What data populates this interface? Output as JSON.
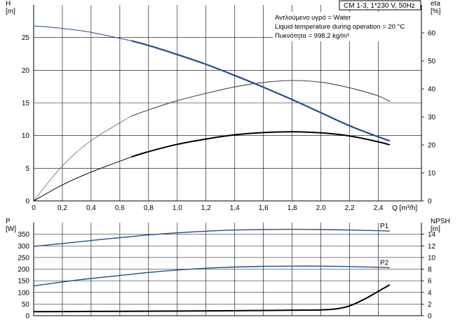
{
  "title": "CM 1-3, 1*230 V, 50Hz",
  "info": {
    "fluid": "Αντλούμενο υγρό = Water",
    "temperature": "Liquid temperature during operation = 20 °C",
    "density": "Πυκνότητα = 998.2 kg/m³"
  },
  "colors": {
    "blue": "#1f4e8c",
    "black": "#000000",
    "thin": "#444444",
    "grid": "#000000"
  },
  "chart_data": [
    {
      "type": "line",
      "id": "upper",
      "xlabel": "Q [m³/h]",
      "ylabel": "H\n[m]",
      "y2label": "eta\n[%]",
      "xlim": [
        0,
        2.7
      ],
      "ylim": [
        0,
        30
      ],
      "y2lim": [
        0,
        70
      ],
      "x_ticks": [
        "0",
        "0,2",
        "0,4",
        "0,6",
        "0,8",
        "1,0",
        "1,2",
        "1,4",
        "1,6",
        "1,8",
        "2,0",
        "2,2",
        "2,4"
      ],
      "y_ticks": [
        "0",
        "5",
        "10",
        "15",
        "20",
        "25"
      ],
      "y2_ticks": [
        "0",
        "10",
        "20",
        "30",
        "40",
        "50",
        "60"
      ],
      "grid": true,
      "series": [
        {
          "id": "H",
          "axis": "left",
          "style": "blue-thick",
          "x": [
            0,
            0.2,
            0.4,
            0.68,
            0.8,
            1.0,
            1.2,
            1.4,
            1.6,
            1.8,
            2.0,
            2.2,
            2.4,
            2.48
          ],
          "y": [
            26.8,
            26.4,
            25.8,
            24.5,
            23.8,
            22.4,
            20.9,
            19.2,
            17.4,
            15.5,
            13.5,
            11.5,
            9.8,
            9.2
          ]
        },
        {
          "id": "eta_thin",
          "axis": "right",
          "style": "thin",
          "x": [
            0,
            0.2,
            0.4,
            0.68,
            0.8,
            1.0,
            1.2,
            1.4,
            1.6,
            1.8,
            2.0,
            2.2,
            2.4,
            2.48
          ],
          "y": [
            0,
            12.5,
            21.5,
            30.3,
            32.5,
            35.8,
            38.4,
            40.7,
            42.3,
            43,
            42.4,
            40.4,
            37.5,
            35.5
          ]
        },
        {
          "id": "eta",
          "axis": "right",
          "style": "black-thick",
          "x": [
            0,
            0.2,
            0.4,
            0.68,
            0.8,
            1.0,
            1.2,
            1.4,
            1.6,
            1.8,
            2.0,
            2.2,
            2.4,
            2.48
          ],
          "y": [
            0,
            5.7,
            10.3,
            15.7,
            17.6,
            20.2,
            22.1,
            23.6,
            24.4,
            24.7,
            24.3,
            23.2,
            21.1,
            20
          ]
        }
      ]
    },
    {
      "type": "line",
      "id": "lower",
      "ylabel": "P\n[W]",
      "y2label": "NPSH\n[m]",
      "ylim": [
        0,
        400
      ],
      "y2lim": [
        0,
        16
      ],
      "y_ticks": [
        "0",
        "50",
        "100",
        "150",
        "200",
        "250",
        "300",
        "350"
      ],
      "y2_ticks": [
        "0",
        "2",
        "4",
        "6",
        "8",
        "10",
        "12",
        "14"
      ],
      "grid": true,
      "series": [
        {
          "id": "P1",
          "name": "P1",
          "axis": "left",
          "style": "blue",
          "x": [
            0,
            0.2,
            0.4,
            0.68,
            0.8,
            1.0,
            1.2,
            1.4,
            1.6,
            1.8,
            2.0,
            2.2,
            2.4,
            2.48
          ],
          "y": [
            298,
            310,
            323,
            340,
            347,
            356,
            363,
            368,
            370,
            371,
            370,
            368,
            365,
            364
          ]
        },
        {
          "id": "P2",
          "name": "P2",
          "axis": "left",
          "style": "blue",
          "x": [
            0,
            0.2,
            0.4,
            0.68,
            0.8,
            1.0,
            1.2,
            1.4,
            1.6,
            1.8,
            2.0,
            2.2,
            2.4,
            2.48
          ],
          "y": [
            128,
            145,
            160,
            178,
            186,
            196,
            204,
            209,
            212,
            213,
            213,
            211,
            208,
            206
          ]
        },
        {
          "id": "NPSH",
          "axis": "right",
          "style": "black-thick",
          "x": [
            0,
            0.6,
            1.0,
            1.4,
            1.8,
            2.0,
            2.1,
            2.2,
            2.3,
            2.4,
            2.48
          ],
          "y": [
            0.7,
            0.75,
            0.8,
            0.85,
            0.95,
            1.0,
            1.15,
            1.7,
            2.8,
            4.2,
            5.3
          ]
        }
      ]
    }
  ]
}
